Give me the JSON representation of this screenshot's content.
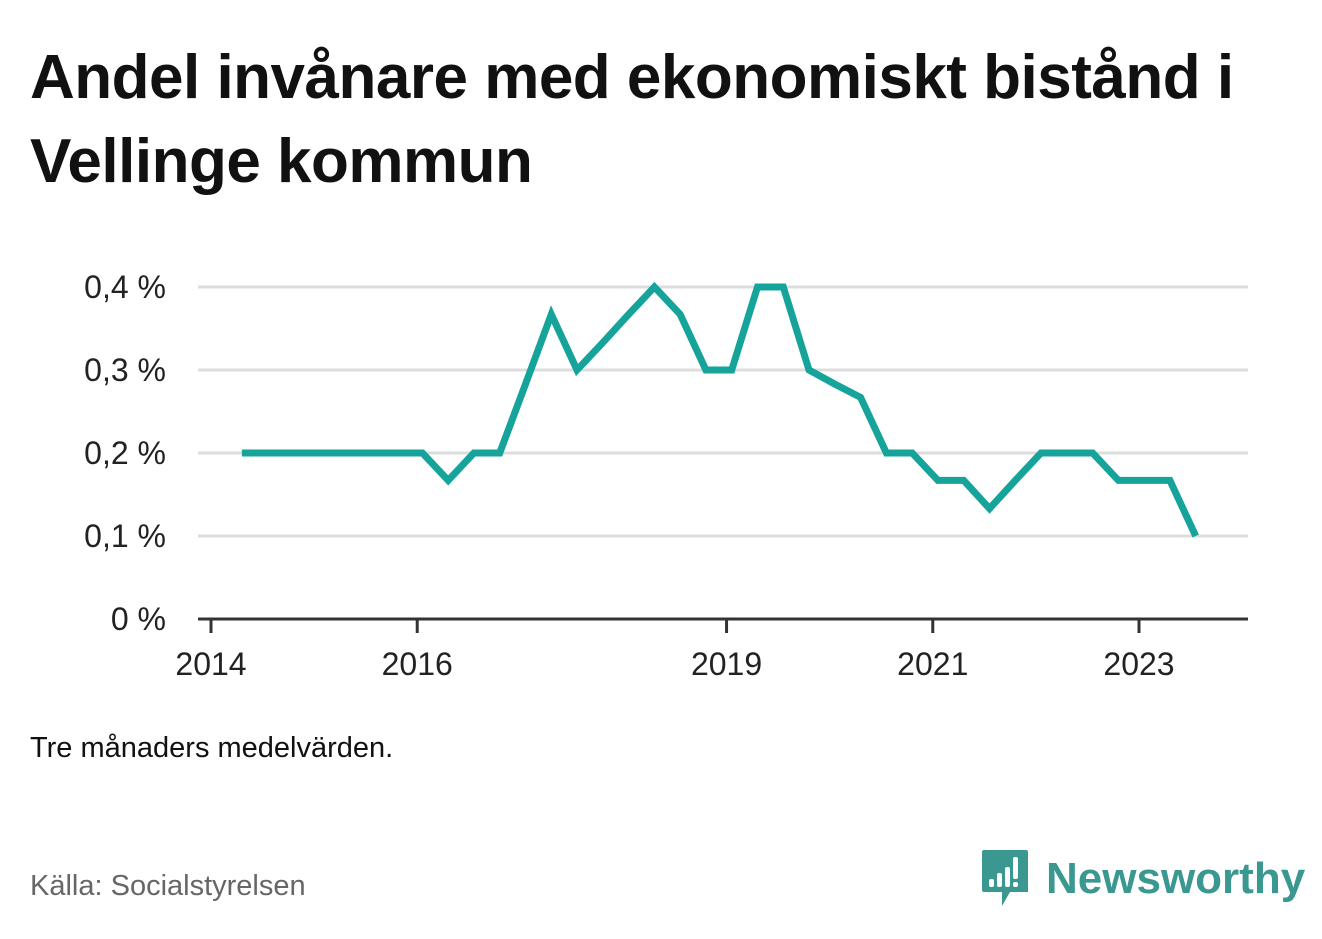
{
  "title": "Andel invånare med ekonomiskt bistånd i Vellinge kommun",
  "note": "Tre månaders medelvärden.",
  "source": "Källa: Socialstyrelsen",
  "brand": {
    "name": "Newsworthy",
    "icon": "newsworthy-logo-icon",
    "color": "#3a9891"
  },
  "colors": {
    "line": "#15a39a",
    "grid": "#dddddd",
    "axis": "#333333"
  },
  "chart_data": {
    "type": "line",
    "title": "Andel invånare med ekonomiskt bistånd i Vellinge kommun",
    "xlabel": "",
    "ylabel": "",
    "ylim": [
      0,
      0.4
    ],
    "xlim": [
      2014,
      2024.5
    ],
    "yticks": [
      {
        "value": 0,
        "label": "0 %"
      },
      {
        "value": 0.1,
        "label": "0,1 %"
      },
      {
        "value": 0.2,
        "label": "0,2 %"
      },
      {
        "value": 0.3,
        "label": "0,3 %"
      },
      {
        "value": 0.4,
        "label": "0,4 %"
      }
    ],
    "xticks": [
      {
        "value": 2014,
        "label": "2014"
      },
      {
        "value": 2016,
        "label": "2016"
      },
      {
        "value": 2019,
        "label": "2019"
      },
      {
        "value": 2021,
        "label": "2021"
      },
      {
        "value": 2023,
        "label": "2023"
      }
    ],
    "grid": true,
    "series": [
      {
        "x": [
          2014.3,
          2014.55,
          2014.8,
          2015.05,
          2015.3,
          2015.55,
          2015.8,
          2016.05,
          2016.3,
          2016.55,
          2016.8,
          2017.05,
          2017.3,
          2017.55,
          2017.8,
          2018.05,
          2018.3,
          2018.55,
          2018.8,
          2019.05,
          2019.3,
          2019.55,
          2019.8,
          2020.05,
          2020.3,
          2020.55,
          2020.8,
          2021.05,
          2021.3,
          2021.55,
          2021.8,
          2022.05,
          2022.3,
          2022.55,
          2022.8,
          2023.05,
          2023.3,
          2023.55
        ],
        "y": [
          0.2,
          0.2,
          0.2,
          0.2,
          0.2,
          0.2,
          0.2,
          0.2,
          0.167,
          0.2,
          0.2,
          0.283,
          0.367,
          0.3,
          0.333,
          0.367,
          0.4,
          0.367,
          0.3,
          0.3,
          0.4,
          0.4,
          0.3,
          0.283,
          0.267,
          0.2,
          0.2,
          0.167,
          0.167,
          0.133,
          0.167,
          0.2,
          0.2,
          0.2,
          0.167,
          0.167,
          0.167,
          0.1
        ]
      }
    ]
  }
}
